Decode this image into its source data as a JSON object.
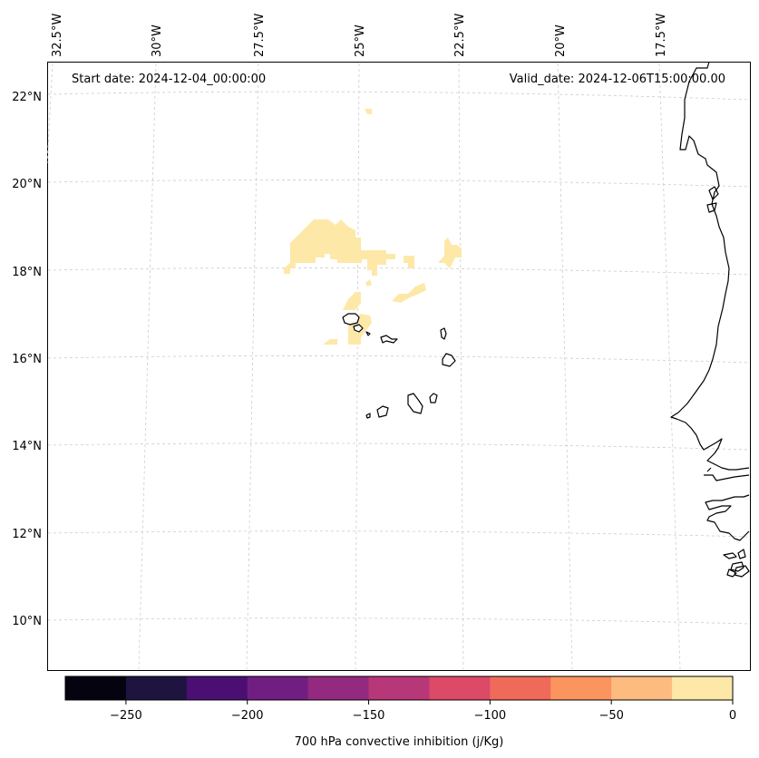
{
  "map": {
    "start_date": "Start date: 2024-12-04_00:00:00",
    "valid_date": "Valid_date: 2024-12-06T15:00:00.00",
    "lon_labels": [
      "32.5°W",
      "30°W",
      "27.5°W",
      "25°W",
      "22.5°W",
      "20°W",
      "17.5°W"
    ],
    "lat_labels": [
      "22°N",
      "20°N",
      "18°N",
      "16°N",
      "14°N",
      "12°N",
      "10°N"
    ]
  },
  "colorbar": {
    "label": "700 hPa convective inhibition (j/Kg)",
    "min": -275,
    "max": 0,
    "tick_values": [
      -250,
      -200,
      -150,
      -100,
      -50,
      0
    ],
    "tick_labels": [
      "−250",
      "−200",
      "−150",
      "−100",
      "−50",
      "0"
    ],
    "colors": [
      "#04030f",
      "#1f1440",
      "#4b0f73",
      "#711e82",
      "#932a7f",
      "#b73779",
      "#dc4a68",
      "#f06a59",
      "#fc9460",
      "#febb80",
      "#fde8a8"
    ]
  }
}
